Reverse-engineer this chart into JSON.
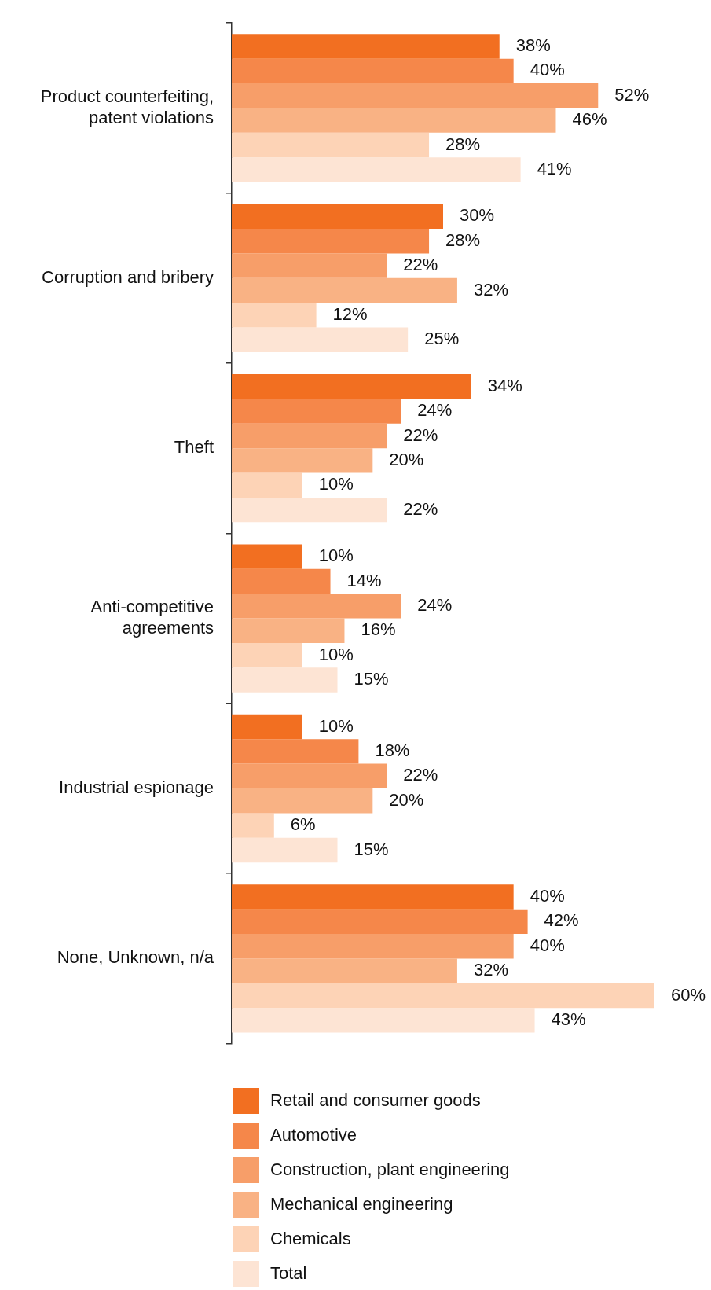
{
  "chart_data": {
    "type": "bar",
    "orientation": "horizontal",
    "legend": "bottom",
    "tick_labels": "y",
    "categories": [
      "Product counterfeiting, patent violations",
      "Corruption and bribery",
      "Theft",
      "Anti-competitive agreements",
      "Industrial espionage",
      "None, Unknown, n/a"
    ],
    "series": [
      {
        "name": "Retail and consumer goods",
        "color": "#f26f21",
        "values": [
          38,
          30,
          34,
          10,
          10,
          40
        ],
        "value_labels": [
          "38%",
          "30%",
          "34%",
          "10%",
          "10%",
          "40%"
        ]
      },
      {
        "name": "Automotive",
        "color": "#f5874a",
        "values": [
          40,
          28,
          24,
          14,
          18,
          42
        ],
        "value_labels": [
          "40%",
          "28%",
          "24%",
          "14%",
          "18%",
          "42%"
        ]
      },
      {
        "name": "Construction, plant engineering",
        "color": "#f79e69",
        "values": [
          52,
          22,
          22,
          24,
          22,
          40
        ],
        "value_labels": [
          "52%",
          "22%",
          "22%",
          "24%",
          "22%",
          "40%"
        ]
      },
      {
        "name": "Mechanical engineering",
        "color": "#f9b284",
        "values": [
          46,
          32,
          20,
          16,
          20,
          32
        ],
        "value_labels": [
          "46%",
          "32%",
          "20%",
          "16%",
          "20%",
          "32%"
        ]
      },
      {
        "name": "Chemicals",
        "color": "#fdd3b6",
        "values": [
          28,
          12,
          10,
          10,
          6,
          60
        ],
        "value_labels": [
          "28%",
          "12%",
          "10%",
          "10%",
          "6%",
          "60%"
        ]
      },
      {
        "name": "Total",
        "color": "#fde4d4",
        "values": [
          41,
          25,
          22,
          15,
          15,
          43
        ],
        "value_labels": [
          "41%",
          "25%",
          "22%",
          "15%",
          "15%",
          "43%"
        ]
      }
    ]
  }
}
